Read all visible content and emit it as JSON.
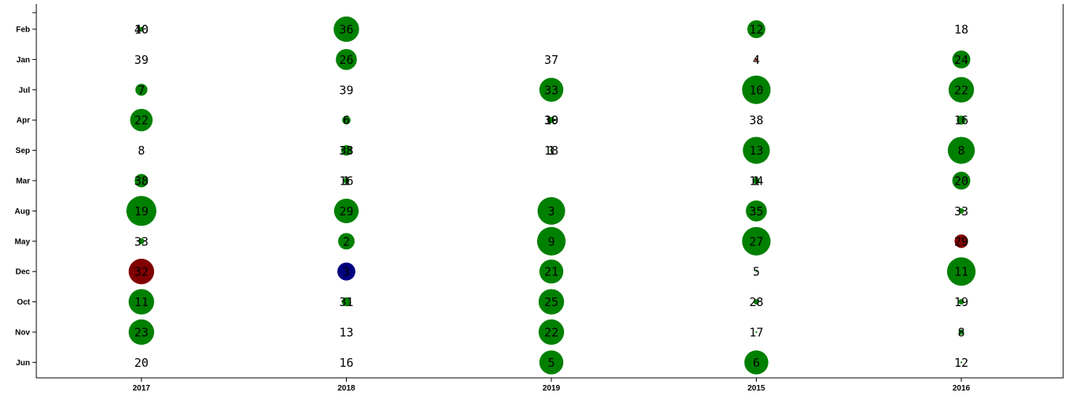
{
  "chart_data": {
    "type": "scatter",
    "title": "",
    "xlabel": "",
    "ylabel": "",
    "x_categories": [
      "2017",
      "2018",
      "2019",
      "2015",
      "2016"
    ],
    "y_categories": [
      "Feb",
      "Jan",
      "Jul",
      "Apr",
      "Sep",
      "Mar",
      "Aug",
      "May",
      "Dec",
      "Oct",
      "Nov",
      "Jun"
    ],
    "colors": {
      "green": "#008000",
      "maroon": "#800000",
      "navy": "#000080"
    },
    "points": [
      {
        "x": "2017",
        "y": "Feb",
        "labels": [
          "40",
          "10"
        ],
        "r": 0.16,
        "color": "green"
      },
      {
        "x": "2018",
        "y": "Feb",
        "labels": [
          "36"
        ],
        "r": 0.85,
        "color": "green"
      },
      {
        "x": "2015",
        "y": "Feb",
        "labels": [
          "12"
        ],
        "r": 0.6,
        "color": "green"
      },
      {
        "x": "2016",
        "y": "Feb",
        "labels": [
          "18"
        ],
        "r": 0,
        "color": "green"
      },
      {
        "x": "2017",
        "y": "Jan",
        "labels": [
          "39"
        ],
        "r": 0,
        "color": "green"
      },
      {
        "x": "2018",
        "y": "Jan",
        "labels": [
          "26"
        ],
        "r": 0.7,
        "color": "green"
      },
      {
        "x": "2019",
        "y": "Jan",
        "labels": [
          "37"
        ],
        "r": 0,
        "color": "green"
      },
      {
        "x": "2015",
        "y": "Jan",
        "labels": [
          "4"
        ],
        "r": 0.08,
        "color": "maroon"
      },
      {
        "x": "2016",
        "y": "Jan",
        "labels": [
          "24"
        ],
        "r": 0.6,
        "color": "green"
      },
      {
        "x": "2017",
        "y": "Jul",
        "labels": [
          "7"
        ],
        "r": 0.4,
        "color": "green"
      },
      {
        "x": "2018",
        "y": "Jul",
        "labels": [
          "39"
        ],
        "r": 0,
        "color": "green"
      },
      {
        "x": "2019",
        "y": "Jul",
        "labels": [
          "33"
        ],
        "r": 0.8,
        "color": "green"
      },
      {
        "x": "2015",
        "y": "Jul",
        "labels": [
          "10"
        ],
        "r": 0.95,
        "color": "green"
      },
      {
        "x": "2016",
        "y": "Jul",
        "labels": [
          "22"
        ],
        "r": 0.85,
        "color": "green"
      },
      {
        "x": "2017",
        "y": "Apr",
        "labels": [
          "22"
        ],
        "r": 0.75,
        "color": "green"
      },
      {
        "x": "2018",
        "y": "Apr",
        "labels": [
          "6"
        ],
        "r": 0.28,
        "color": "green"
      },
      {
        "x": "2019",
        "y": "Apr",
        "labels": [
          "30",
          "19"
        ],
        "r": 0.2,
        "color": "green"
      },
      {
        "x": "2015",
        "y": "Apr",
        "labels": [
          "38"
        ],
        "r": 0,
        "color": "green"
      },
      {
        "x": "2016",
        "y": "Apr",
        "labels": [
          "16"
        ],
        "r": 0.3,
        "color": "green"
      },
      {
        "x": "2017",
        "y": "Sep",
        "labels": [
          "8"
        ],
        "r": 0,
        "color": "green"
      },
      {
        "x": "2018",
        "y": "Sep",
        "labels": [
          "38",
          "33"
        ],
        "r": 0.35,
        "color": "green"
      },
      {
        "x": "2019",
        "y": "Sep",
        "labels": [
          "1",
          "18"
        ],
        "r": 0.08,
        "color": "green"
      },
      {
        "x": "2015",
        "y": "Sep",
        "labels": [
          "13"
        ],
        "r": 0.9,
        "color": "green"
      },
      {
        "x": "2016",
        "y": "Sep",
        "labels": [
          "8"
        ],
        "r": 0.9,
        "color": "green"
      },
      {
        "x": "2017",
        "y": "Mar",
        "labels": [
          "38"
        ],
        "r": 0.45,
        "color": "green"
      },
      {
        "x": "2018",
        "y": "Mar",
        "labels": [
          "1",
          "16"
        ],
        "r": 0.2,
        "color": "green"
      },
      {
        "x": "2015",
        "y": "Mar",
        "labels": [
          "1",
          "14"
        ],
        "r": 0.22,
        "color": "green"
      },
      {
        "x": "2016",
        "y": "Mar",
        "labels": [
          "20"
        ],
        "r": 0.6,
        "color": "green"
      },
      {
        "x": "2017",
        "y": "Aug",
        "labels": [
          "19"
        ],
        "r": 1.0,
        "color": "green"
      },
      {
        "x": "2018",
        "y": "Aug",
        "labels": [
          "29"
        ],
        "r": 0.82,
        "color": "green"
      },
      {
        "x": "2019",
        "y": "Aug",
        "labels": [
          "3"
        ],
        "r": 0.92,
        "color": "green"
      },
      {
        "x": "2015",
        "y": "Aug",
        "labels": [
          "35"
        ],
        "r": 0.7,
        "color": "green"
      },
      {
        "x": "2016",
        "y": "Aug",
        "labels": [
          "33"
        ],
        "r": 0.18,
        "color": "green"
      },
      {
        "x": "2017",
        "y": "May",
        "labels": [
          "33"
        ],
        "r": 0.2,
        "color": "green"
      },
      {
        "x": "2018",
        "y": "May",
        "labels": [
          "2"
        ],
        "r": 0.55,
        "color": "green"
      },
      {
        "x": "2019",
        "y": "May",
        "labels": [
          "9"
        ],
        "r": 0.95,
        "color": "green"
      },
      {
        "x": "2015",
        "y": "May",
        "labels": [
          "27"
        ],
        "r": 0.95,
        "color": "green"
      },
      {
        "x": "2016",
        "y": "May",
        "labels": [
          "29"
        ],
        "r": 0.45,
        "color": "maroon"
      },
      {
        "x": "2017",
        "y": "Dec",
        "labels": [
          "32"
        ],
        "r": 0.85,
        "color": "maroon"
      },
      {
        "x": "2018",
        "y": "Dec",
        "labels": [
          "3"
        ],
        "r": 0.6,
        "color": "navy"
      },
      {
        "x": "2019",
        "y": "Dec",
        "labels": [
          "21"
        ],
        "r": 0.8,
        "color": "green"
      },
      {
        "x": "2015",
        "y": "Dec",
        "labels": [
          "5"
        ],
        "r": 0.05,
        "color": "green"
      },
      {
        "x": "2016",
        "y": "Dec",
        "labels": [
          "11"
        ],
        "r": 0.95,
        "color": "green"
      },
      {
        "x": "2017",
        "y": "Oct",
        "labels": [
          "11"
        ],
        "r": 0.85,
        "color": "green"
      },
      {
        "x": "2018",
        "y": "Oct",
        "labels": [
          "31"
        ],
        "r": 0.3,
        "color": "green"
      },
      {
        "x": "2019",
        "y": "Oct",
        "labels": [
          "25"
        ],
        "r": 0.85,
        "color": "green"
      },
      {
        "x": "2015",
        "y": "Oct",
        "labels": [
          "28"
        ],
        "r": 0.18,
        "color": "green"
      },
      {
        "x": "2016",
        "y": "Oct",
        "labels": [
          "19"
        ],
        "r": 0.18,
        "color": "green"
      },
      {
        "x": "2017",
        "y": "Nov",
        "labels": [
          "23"
        ],
        "r": 0.85,
        "color": "green"
      },
      {
        "x": "2018",
        "y": "Nov",
        "labels": [
          "13"
        ],
        "r": 0,
        "color": "green"
      },
      {
        "x": "2019",
        "y": "Nov",
        "labels": [
          "22"
        ],
        "r": 0.85,
        "color": "green"
      },
      {
        "x": "2015",
        "y": "Nov",
        "labels": [
          "17"
        ],
        "r": 0.06,
        "color": "green"
      },
      {
        "x": "2016",
        "y": "Nov",
        "labels": [
          "8"
        ],
        "r": 0.18,
        "color": "green"
      },
      {
        "x": "2017",
        "y": "Jun",
        "labels": [
          "20"
        ],
        "r": 0,
        "color": "green"
      },
      {
        "x": "2018",
        "y": "Jun",
        "labels": [
          "16"
        ],
        "r": 0,
        "color": "green"
      },
      {
        "x": "2019",
        "y": "Jun",
        "labels": [
          "5"
        ],
        "r": 0.8,
        "color": "green"
      },
      {
        "x": "2015",
        "y": "Jun",
        "labels": [
          "6"
        ],
        "r": 0.8,
        "color": "green"
      },
      {
        "x": "2016",
        "y": "Jun",
        "labels": [
          "12"
        ],
        "r": 0.06,
        "color": "green"
      }
    ]
  }
}
